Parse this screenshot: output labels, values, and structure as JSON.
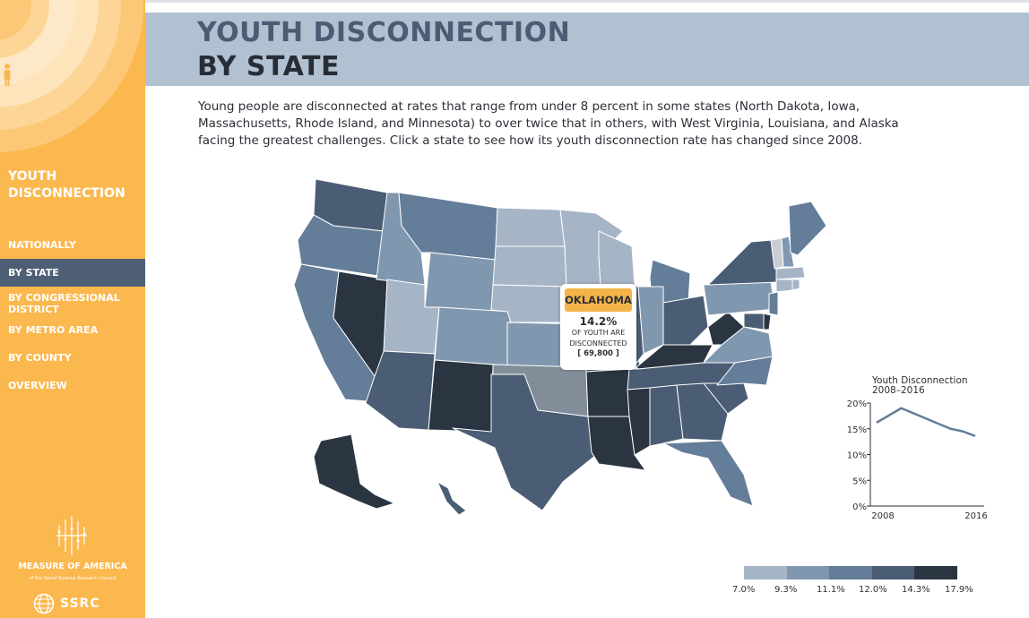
{
  "sidebar": {
    "title_line1": "YOUTH",
    "title_line2": "DISCONNECTION",
    "nav": [
      {
        "label": "NATIONALLY",
        "active": false
      },
      {
        "label": "BY STATE",
        "active": true
      },
      {
        "label_line1": "BY CONGRESSIONAL",
        "label_line2": "DISTRICT",
        "active": false
      },
      {
        "label": "BY METRO AREA",
        "active": false
      },
      {
        "label": "BY COUNTY",
        "active": false
      },
      {
        "label": "OVERVIEW",
        "active": false
      }
    ],
    "org_name": "MEASURE OF AMERICA",
    "org_sub": "of the Social Science Research Council",
    "ssrc": "SSRC"
  },
  "header": {
    "line1": "YOUTH DISCONNECTION",
    "line2": "BY STATE"
  },
  "intro": "Young people are disconnected at rates that range from under 8 percent in some states (North Dakota, Iowa, Massachusetts, Rhode Island, and Minnesota) to over twice that in others, with West Virginia, Louisiana, and Alaska facing the greatest challenges. Click a state to see how its youth disconnection rate has changed since 2008.",
  "tooltip": {
    "state": "OKLAHOMA",
    "rate": "14.2%",
    "label1": "OF YOUTH ARE",
    "label2": "DISCONNECTED",
    "count": "[ 69,800 ]"
  },
  "colors": {
    "sidebar": "#fbb84f",
    "active_nav": "#4d5e75",
    "header_band": "#b2c1d1",
    "title_dark": "#272d36",
    "title_mid": "#4a5d74",
    "tooltip_state": "#f4b449",
    "highlight_state": "#828d99",
    "bins": [
      "#a6b5c6",
      "#8097b0",
      "#647d98",
      "#4a5d74",
      "#2b3542"
    ]
  },
  "chart_data": {
    "type": "line",
    "title": "Youth Disconnection",
    "subtitle": "2008–2016",
    "x": [
      2008,
      2010,
      2012,
      2014,
      2015,
      2016
    ],
    "series": [
      {
        "values": [
          16.2,
          19.0,
          17.0,
          15.0,
          14.5,
          13.6
        ]
      }
    ],
    "ylim": [
      0,
      20
    ],
    "yticks": [
      "20%",
      "15%",
      "10%",
      "5%",
      "0%"
    ],
    "ytick_values": [
      20,
      15,
      10,
      5,
      0
    ],
    "xtick_labels": [
      "2008",
      "2016"
    ]
  },
  "legend": {
    "labels": [
      "7.0%",
      "9.3%",
      "11.1%",
      "12.0%",
      "14.3%",
      "17.9%"
    ]
  }
}
